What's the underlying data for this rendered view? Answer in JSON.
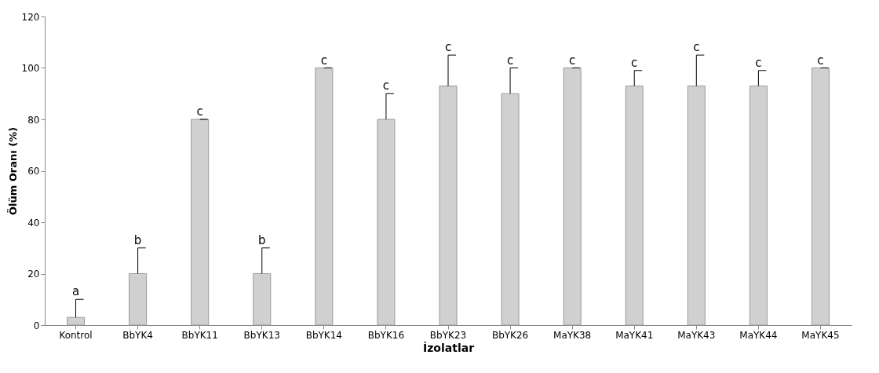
{
  "chart_data": {
    "type": "bar",
    "xlabel": "İzolatlar",
    "ylabel": "Ölüm Oranı (%)",
    "categories": [
      "Kontrol",
      "BbYK4",
      "BbYK11",
      "BbYK13",
      "BbYK14",
      "BbYK16",
      "BbYK23",
      "BbYK26",
      "MaYK38",
      "MaYK41",
      "MaYK43",
      "MaYK44",
      "MaYK45"
    ],
    "values": [
      3,
      20,
      80,
      20,
      100,
      80,
      93,
      90,
      100,
      93,
      93,
      93,
      100
    ],
    "errors": [
      [
        3,
        10
      ],
      [
        20,
        30
      ],
      [
        80,
        80
      ],
      [
        20,
        30
      ],
      [
        100,
        100
      ],
      [
        80,
        90
      ],
      [
        93,
        105
      ],
      [
        90,
        100
      ],
      [
        100,
        100
      ],
      [
        93,
        99
      ],
      [
        93,
        105
      ],
      [
        93,
        99
      ],
      [
        100,
        100
      ]
    ],
    "color": "#d0d0d0",
    "ylim": [
      0,
      120
    ],
    "yticks": [
      0,
      20,
      40,
      60,
      80,
      100,
      120
    ],
    "grid": false,
    "annotations": [
      {
        "text": "a",
        "x": "Kontrol",
        "y": 10
      },
      {
        "text": "b",
        "x": "BbYK4",
        "y": 30
      },
      {
        "text": "c",
        "x": "BbYK11",
        "y": 80
      },
      {
        "text": "b",
        "x": "BbYK13",
        "y": 30
      },
      {
        "text": "c",
        "x": "BbYK14",
        "y": 100
      },
      {
        "text": "c",
        "x": "BbYK16",
        "y": 90
      },
      {
        "text": "c",
        "x": "BbYK23",
        "y": 105
      },
      {
        "text": "c",
        "x": "BbYK26",
        "y": 100
      },
      {
        "text": "c",
        "x": "MaYK38",
        "y": 100
      },
      {
        "text": "c",
        "x": "MaYK41",
        "y": 99
      },
      {
        "text": "c",
        "x": "MaYK43",
        "y": 105
      },
      {
        "text": "c",
        "x": "MaYK44",
        "y": 99
      },
      {
        "text": "c",
        "x": "MaYK45",
        "y": 100
      }
    ]
  }
}
